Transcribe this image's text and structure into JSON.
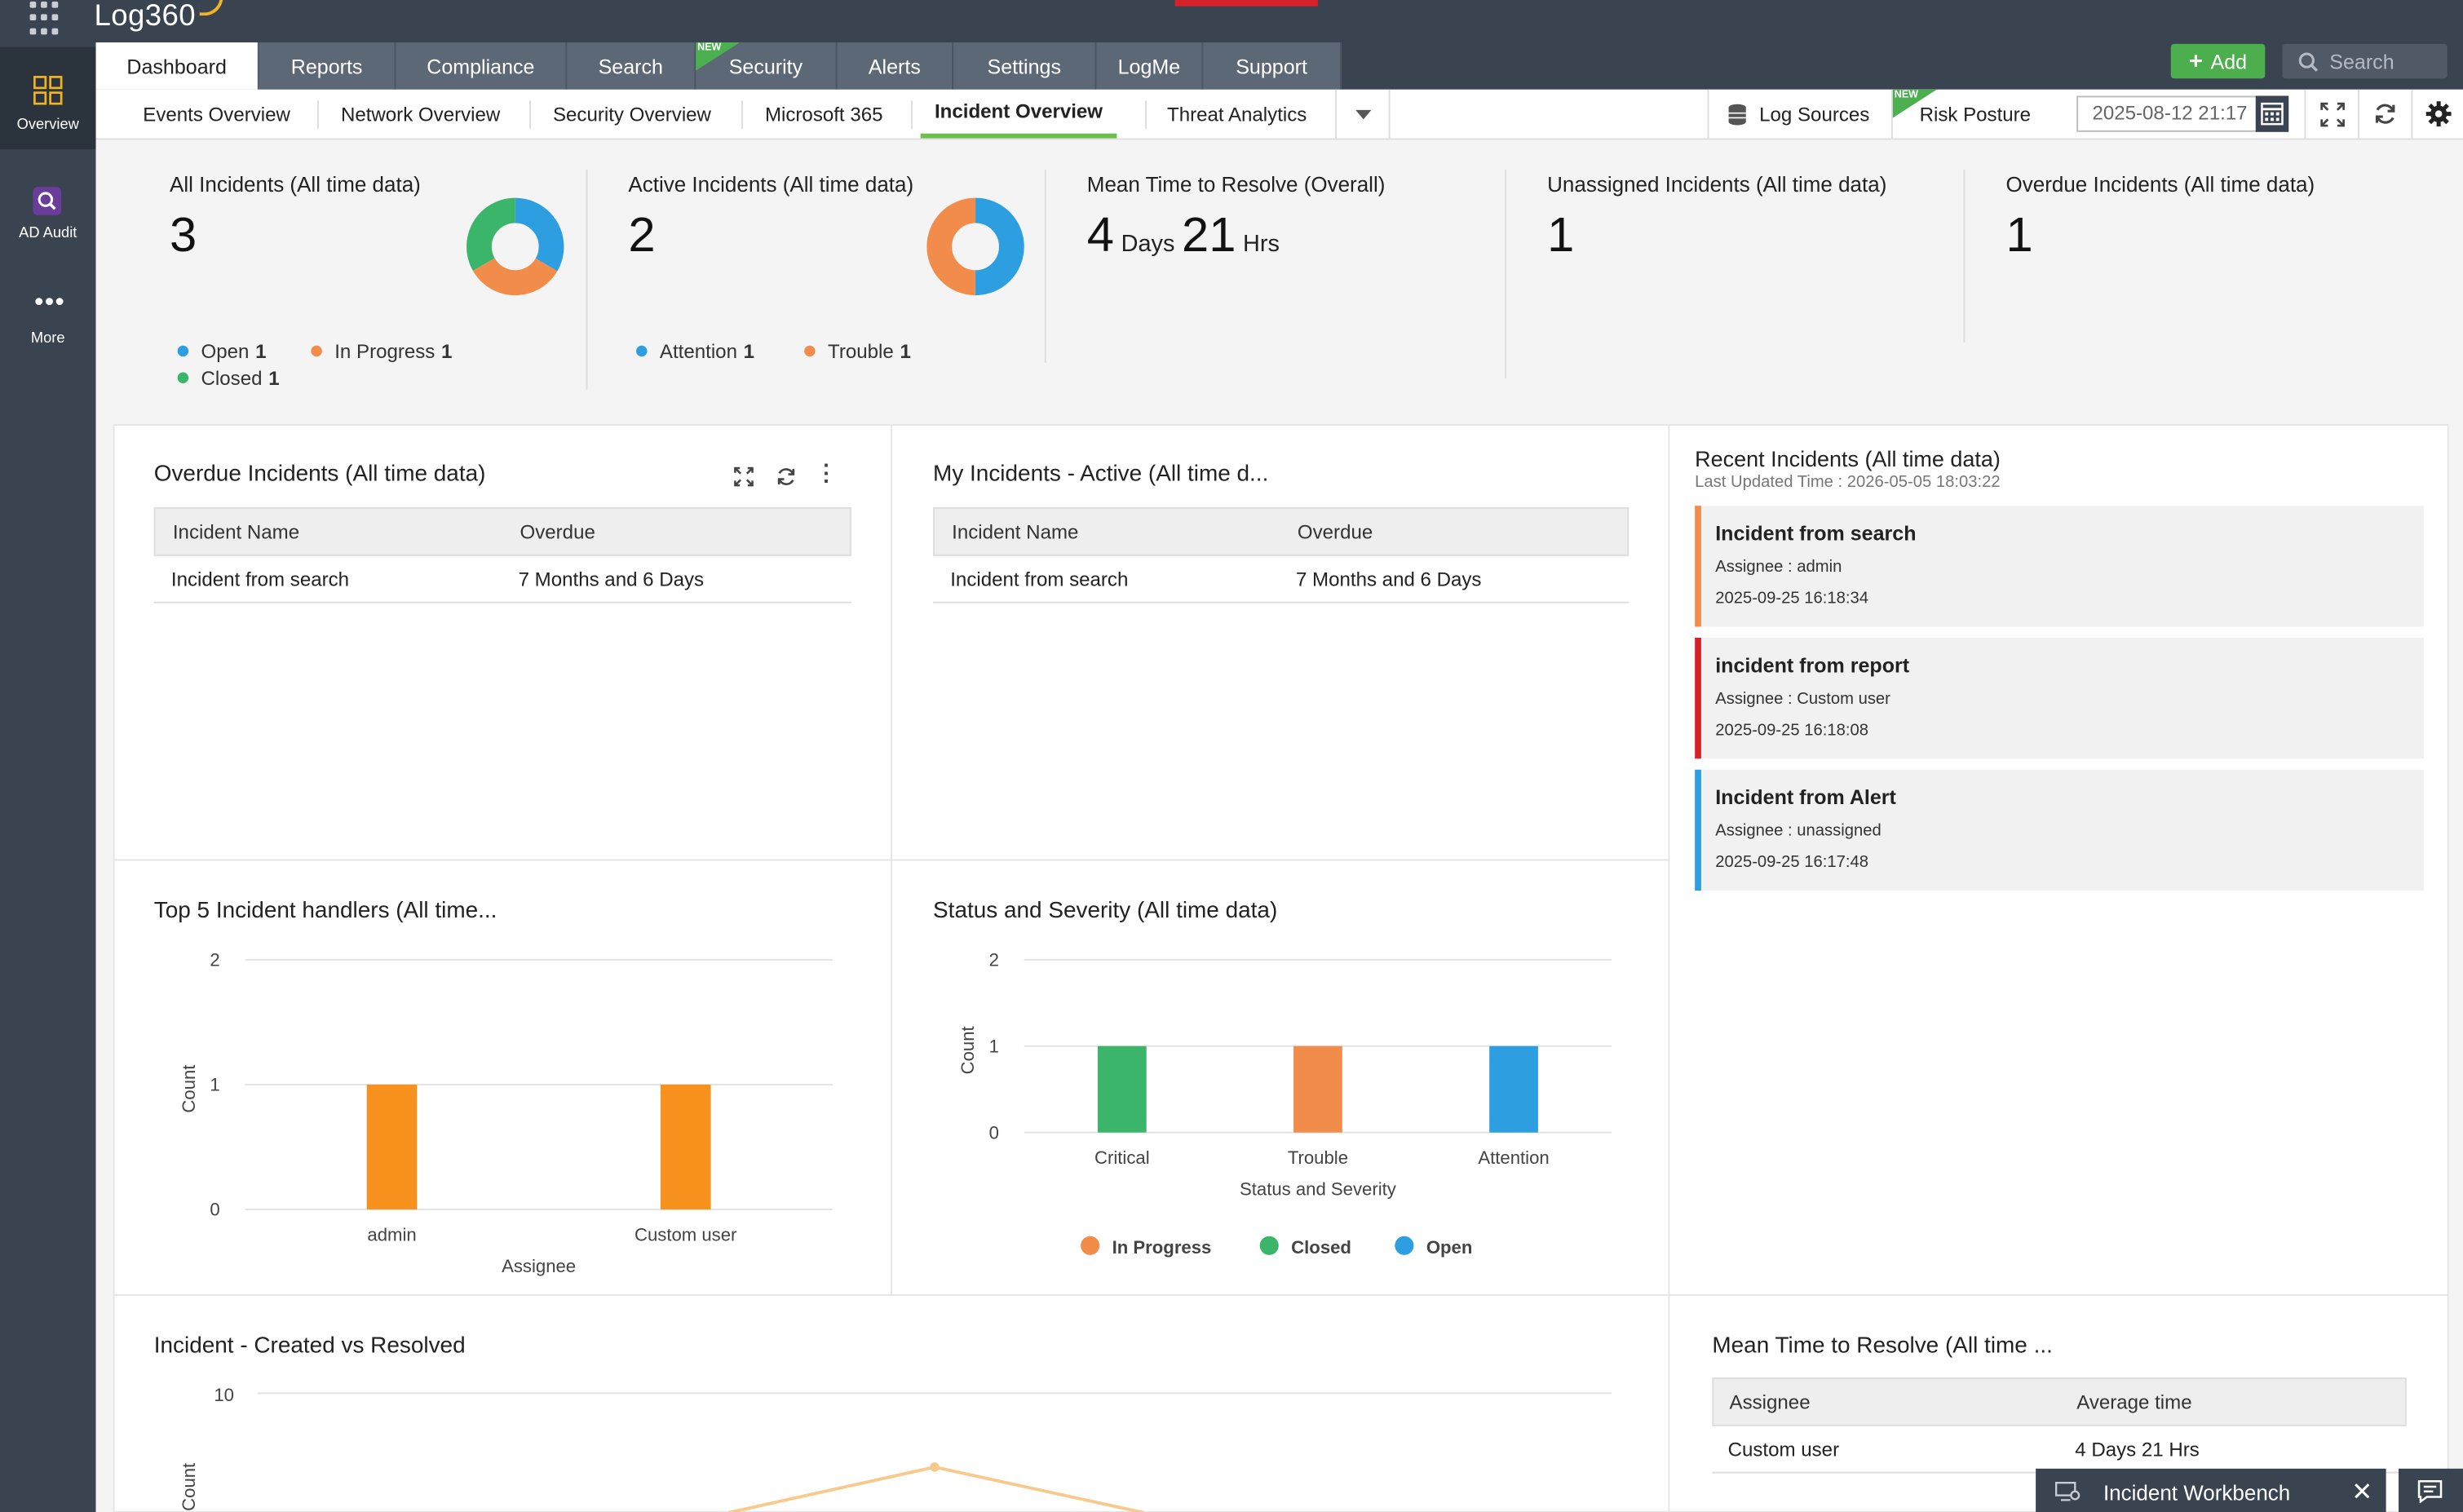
{
  "app": {
    "name": "Log360"
  },
  "main_tabs": [
    {
      "label": "Dashboard",
      "active": true
    },
    {
      "label": "Reports"
    },
    {
      "label": "Compliance"
    },
    {
      "label": "Search"
    },
    {
      "label": "Security",
      "badge": "NEW"
    },
    {
      "label": "Alerts"
    },
    {
      "label": "Settings"
    },
    {
      "label": "LogMe"
    },
    {
      "label": "Support"
    }
  ],
  "header": {
    "add_label": "Add",
    "search_placeholder": "Search"
  },
  "sub_tabs": [
    "Events Overview",
    "Network Overview",
    "Security Overview",
    "Microsoft 365",
    "Incident Overview",
    "Threat Analytics"
  ],
  "sub_active": "Incident Overview",
  "subnav_right": {
    "log_sources": "Log Sources",
    "risk_posture": "Risk Posture",
    "risk_badge": "NEW",
    "date": "2025-08-12 21:17"
  },
  "sidebar": {
    "items": [
      {
        "label": "Overview",
        "icon": "overview-grid-icon"
      },
      {
        "label": "AD Audit",
        "icon": "ad-audit-icon"
      },
      {
        "label": "More",
        "icon": "more-dots-icon"
      }
    ]
  },
  "kpis": {
    "all": {
      "title": "All Incidents (All time data)",
      "value": "3",
      "legend": [
        {
          "label": "Open",
          "value": "1",
          "color": "#2d9ee0"
        },
        {
          "label": "In Progress",
          "value": "1",
          "color": "#f28c4b"
        },
        {
          "label": "Closed",
          "value": "1",
          "color": "#3bb56a"
        }
      ]
    },
    "active": {
      "title": "Active Incidents (All time data)",
      "value": "2",
      "legend": [
        {
          "label": "Attention",
          "value": "1",
          "color": "#2d9ee0"
        },
        {
          "label": "Trouble",
          "value": "1",
          "color": "#f28c4b"
        }
      ]
    },
    "mttr": {
      "title": "Mean Time to Resolve (Overall)",
      "days": "4",
      "days_unit": "Days",
      "hrs": "21",
      "hrs_unit": "Hrs"
    },
    "unassigned": {
      "title": "Unassigned Incidents (All time data)",
      "value": "1"
    },
    "overdue": {
      "title": "Overdue Incidents (All time data)",
      "value": "1"
    }
  },
  "overdue_panel": {
    "title": "Overdue Incidents (All time data)",
    "columns": [
      "Incident Name",
      "Overdue"
    ],
    "rows": [
      [
        "Incident from search",
        "7 Months and 6 Days"
      ]
    ]
  },
  "my_panel": {
    "title": "My Incidents - Active (All time d...",
    "columns": [
      "Incident Name",
      "Overdue"
    ],
    "rows": [
      [
        "Incident from search",
        "7 Months and 6 Days"
      ]
    ]
  },
  "recent": {
    "title": "Recent Incidents (All time data)",
    "updated_label": "Last Updated Time :",
    "updated": "2026-05-05 18:03:22",
    "assignee_label": "Assignee :",
    "items": [
      {
        "title": "Incident from search",
        "assignee": "admin",
        "time": "2025-09-25 16:18:34",
        "color": "#f28c4b"
      },
      {
        "title": "incident from report",
        "assignee": "Custom user",
        "time": "2025-09-25 16:18:08",
        "color": "#d6212b"
      },
      {
        "title": "Incident from Alert",
        "assignee": "unassigned",
        "time": "2025-09-25 16:17:48",
        "color": "#2d9ee0"
      }
    ]
  },
  "mttr_panel": {
    "title": "Mean Time to Resolve (All time ...",
    "columns": [
      "Assignee",
      "Average time"
    ],
    "rows": [
      [
        "Custom user",
        "4 Days 21 Hrs"
      ]
    ]
  },
  "workbench": {
    "label": "Incident Workbench"
  },
  "chart_data": [
    {
      "type": "bar",
      "title": "Top 5 Incident handlers (All time...",
      "categories": [
        "admin",
        "Custom user"
      ],
      "values": [
        1,
        1
      ],
      "xlabel": "Assignee",
      "ylabel": "Count",
      "ylim": [
        0,
        2
      ],
      "yticks": [
        0,
        1,
        2
      ],
      "color": "#f7921e",
      "grid": true
    },
    {
      "type": "bar",
      "title": "Status and Severity (All time data)",
      "categories": [
        "Critical",
        "Trouble",
        "Attention"
      ],
      "series": [
        {
          "name": "In Progress",
          "color": "#f28c4b"
        },
        {
          "name": "Closed",
          "color": "#3bb56a"
        },
        {
          "name": "Open",
          "color": "#2d9ee0"
        }
      ],
      "values": [
        1,
        1,
        1
      ],
      "bar_colors": [
        "#3bb56a",
        "#f28c4b",
        "#2d9ee0"
      ],
      "xlabel": "Status and Severity",
      "ylabel": "Count",
      "ylim": [
        0,
        2
      ],
      "yticks": [
        0,
        1,
        2
      ],
      "legend": "bottom",
      "grid": true
    },
    {
      "type": "line",
      "title": "Incident - Created vs Resolved",
      "ylabel": "Count",
      "yticks": [
        10
      ],
      "grid": true
    }
  ]
}
